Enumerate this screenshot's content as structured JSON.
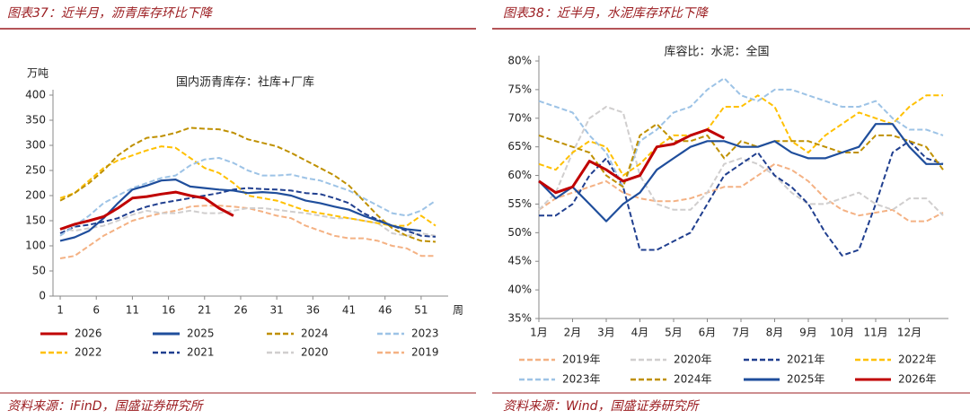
{
  "chart_data": [
    {
      "type": "line",
      "heading": "图表37：近半月，沥青库存环比下降",
      "title": "国内沥青库存：社库+厂库",
      "source": "资料来源：iFinD，国盛证券研究所",
      "ylabel": "万吨",
      "xlabel": "周",
      "xlim": [
        0,
        54
      ],
      "xticks": [
        1,
        6,
        11,
        16,
        21,
        26,
        31,
        36,
        41,
        46,
        51
      ],
      "ylim": [
        0,
        400
      ],
      "yticks": [
        0,
        50,
        100,
        150,
        200,
        250,
        300,
        350,
        400
      ],
      "x": [
        1,
        3,
        5,
        7,
        9,
        11,
        13,
        15,
        17,
        19,
        21,
        23,
        25,
        27,
        29,
        31,
        33,
        35,
        37,
        39,
        41,
        43,
        45,
        47,
        49,
        51,
        53
      ],
      "series": [
        {
          "name": "2026",
          "color": "#c00000",
          "style": "solid",
          "values": [
            133,
            143,
            150,
            158,
            175,
            195,
            198,
            203,
            207,
            200,
            195,
            175,
            160,
            null,
            null,
            null,
            null,
            null,
            null,
            null,
            null,
            null,
            null,
            null,
            null,
            null,
            null
          ]
        },
        {
          "name": "2025",
          "color": "#1f4e9c",
          "style": "solid",
          "values": [
            110,
            117,
            130,
            155,
            185,
            212,
            220,
            230,
            232,
            218,
            215,
            212,
            210,
            205,
            207,
            205,
            200,
            190,
            185,
            178,
            172,
            160,
            150,
            140,
            133,
            130,
            null
          ]
        },
        {
          "name": "2024",
          "color": "#bf9000",
          "style": "dashed",
          "values": [
            190,
            205,
            225,
            250,
            280,
            300,
            315,
            318,
            325,
            335,
            333,
            332,
            325,
            312,
            305,
            298,
            285,
            270,
            255,
            240,
            220,
            190,
            160,
            135,
            120,
            110,
            108
          ]
        },
        {
          "name": "2023",
          "color": "#9dc3e6",
          "style": "dashed",
          "values": [
            120,
            140,
            160,
            185,
            200,
            215,
            225,
            235,
            240,
            260,
            272,
            275,
            265,
            250,
            240,
            240,
            242,
            235,
            230,
            220,
            210,
            195,
            180,
            165,
            160,
            170,
            190
          ]
        },
        {
          "name": "2022",
          "color": "#ffc000",
          "style": "dashed",
          "values": [
            195,
            205,
            230,
            255,
            270,
            280,
            290,
            298,
            295,
            275,
            255,
            245,
            225,
            200,
            195,
            190,
            180,
            170,
            165,
            160,
            155,
            150,
            145,
            140,
            140,
            160,
            140
          ]
        },
        {
          "name": "2021",
          "color": "#203f8f",
          "style": "dashed",
          "values": [
            125,
            138,
            142,
            148,
            155,
            168,
            178,
            185,
            190,
            195,
            200,
            205,
            212,
            215,
            213,
            212,
            210,
            205,
            203,
            195,
            185,
            165,
            152,
            140,
            130,
            120,
            118
          ]
        },
        {
          "name": "2020",
          "color": "#d0cece",
          "style": "dashed",
          "values": [
            135,
            130,
            135,
            140,
            150,
            162,
            170,
            165,
            165,
            170,
            165,
            165,
            170,
            175,
            175,
            172,
            168,
            165,
            160,
            155,
            155,
            150,
            145,
            125,
            120,
            125,
            120
          ]
        },
        {
          "name": "2019",
          "color": "#f4b183",
          "style": "dashed",
          "values": [
            75,
            80,
            100,
            120,
            135,
            150,
            158,
            165,
            170,
            178,
            180,
            180,
            178,
            175,
            168,
            160,
            155,
            140,
            130,
            120,
            115,
            115,
            110,
            100,
            95,
            80,
            80
          ]
        }
      ]
    },
    {
      "type": "line",
      "heading": "图表38：近半月，水泥库存环比下降",
      "title": "库容比：水泥：全国",
      "source": "资料来源：Wind，国盛证券研究所",
      "xlim": [
        1,
        13
      ],
      "xticks": [
        {
          "value": 1,
          "label": "1月"
        },
        {
          "value": 2,
          "label": "2月"
        },
        {
          "value": 3,
          "label": "3月"
        },
        {
          "value": 4,
          "label": "4月"
        },
        {
          "value": 5,
          "label": "5月"
        },
        {
          "value": 6,
          "label": "6月"
        },
        {
          "value": 7,
          "label": "7月"
        },
        {
          "value": 8,
          "label": "8月"
        },
        {
          "value": 9,
          "label": "9月"
        },
        {
          "value": 10,
          "label": "10月"
        },
        {
          "value": 11,
          "label": "11月"
        },
        {
          "value": 12,
          "label": "12月"
        }
      ],
      "ylim": [
        35,
        80
      ],
      "yticks": [
        {
          "value": 35,
          "label": "35%"
        },
        {
          "value": 40,
          "label": "40%"
        },
        {
          "value": 45,
          "label": "45%"
        },
        {
          "value": 50,
          "label": "50%"
        },
        {
          "value": 55,
          "label": "55%"
        },
        {
          "value": 60,
          "label": "60%"
        },
        {
          "value": 65,
          "label": "65%"
        },
        {
          "value": 70,
          "label": "70%"
        },
        {
          "value": 75,
          "label": "75%"
        },
        {
          "value": 80,
          "label": "80%"
        }
      ],
      "x": [
        1,
        1.5,
        2,
        2.5,
        3,
        3.5,
        4,
        4.5,
        5,
        5.5,
        6,
        6.5,
        7,
        7.5,
        8,
        8.5,
        9,
        9.5,
        10,
        10.5,
        11,
        11.5,
        12,
        12.5,
        13
      ],
      "series": [
        {
          "name": "2019年",
          "color": "#f4b183",
          "style": "dashed",
          "values": [
            54,
            56,
            57,
            58,
            59,
            57,
            56,
            55.5,
            55.5,
            56,
            57,
            58,
            58,
            60,
            62,
            61,
            59,
            56,
            54,
            53,
            53.5,
            54,
            52,
            52,
            53.5
          ]
        },
        {
          "name": "2020年",
          "color": "#d0cece",
          "style": "dashed",
          "values": [
            54,
            57,
            64,
            70,
            72,
            71,
            60,
            55,
            54,
            54,
            57,
            62,
            63,
            62,
            60,
            57,
            55,
            55,
            56,
            57,
            55,
            54,
            56,
            56,
            53
          ]
        },
        {
          "name": "2021年",
          "color": "#203f8f",
          "style": "dashed",
          "values": [
            53,
            53,
            55,
            60,
            63,
            58,
            47,
            47,
            48.5,
            50,
            55,
            60,
            62,
            64,
            60,
            58,
            55,
            50,
            46,
            47,
            55,
            64,
            66,
            63,
            62
          ]
        },
        {
          "name": "2022年",
          "color": "#ffc000",
          "style": "dashed",
          "values": [
            62,
            61,
            64,
            66,
            65,
            60,
            62,
            65,
            67,
            67,
            68,
            72,
            72,
            74,
            72,
            66,
            64,
            67,
            69,
            71,
            70,
            69,
            72,
            74,
            74
          ]
        },
        {
          "name": "2023年",
          "color": "#9dc3e6",
          "style": "dashed",
          "values": [
            73,
            72,
            71,
            67,
            64,
            58,
            66,
            68,
            71,
            72,
            75,
            77,
            74,
            73,
            75,
            75,
            74,
            73,
            72,
            72,
            73,
            70,
            68,
            68,
            67
          ]
        },
        {
          "name": "2024年",
          "color": "#bf9000",
          "style": "dashed",
          "values": [
            67,
            66,
            65,
            64,
            60,
            58,
            67,
            69,
            66,
            66,
            67,
            63,
            66,
            65,
            66,
            66,
            66,
            65,
            64,
            64,
            67,
            67,
            66,
            65,
            61
          ]
        },
        {
          "name": "2025年",
          "color": "#1f4e9c",
          "style": "solid",
          "values": [
            59,
            56,
            58,
            55,
            52,
            55,
            57,
            61,
            63,
            65,
            66,
            66,
            65,
            65,
            66,
            64,
            63,
            63,
            64,
            65,
            69,
            69,
            65,
            62,
            62
          ]
        },
        {
          "name": "2026年",
          "color": "#c00000",
          "style": "solid",
          "values": [
            59,
            57,
            58,
            62.5,
            61,
            59,
            60,
            65,
            65.5,
            67,
            68,
            66.5,
            null,
            null,
            null,
            null,
            null,
            null,
            null,
            null,
            null,
            null,
            null,
            null,
            null
          ]
        }
      ]
    }
  ]
}
